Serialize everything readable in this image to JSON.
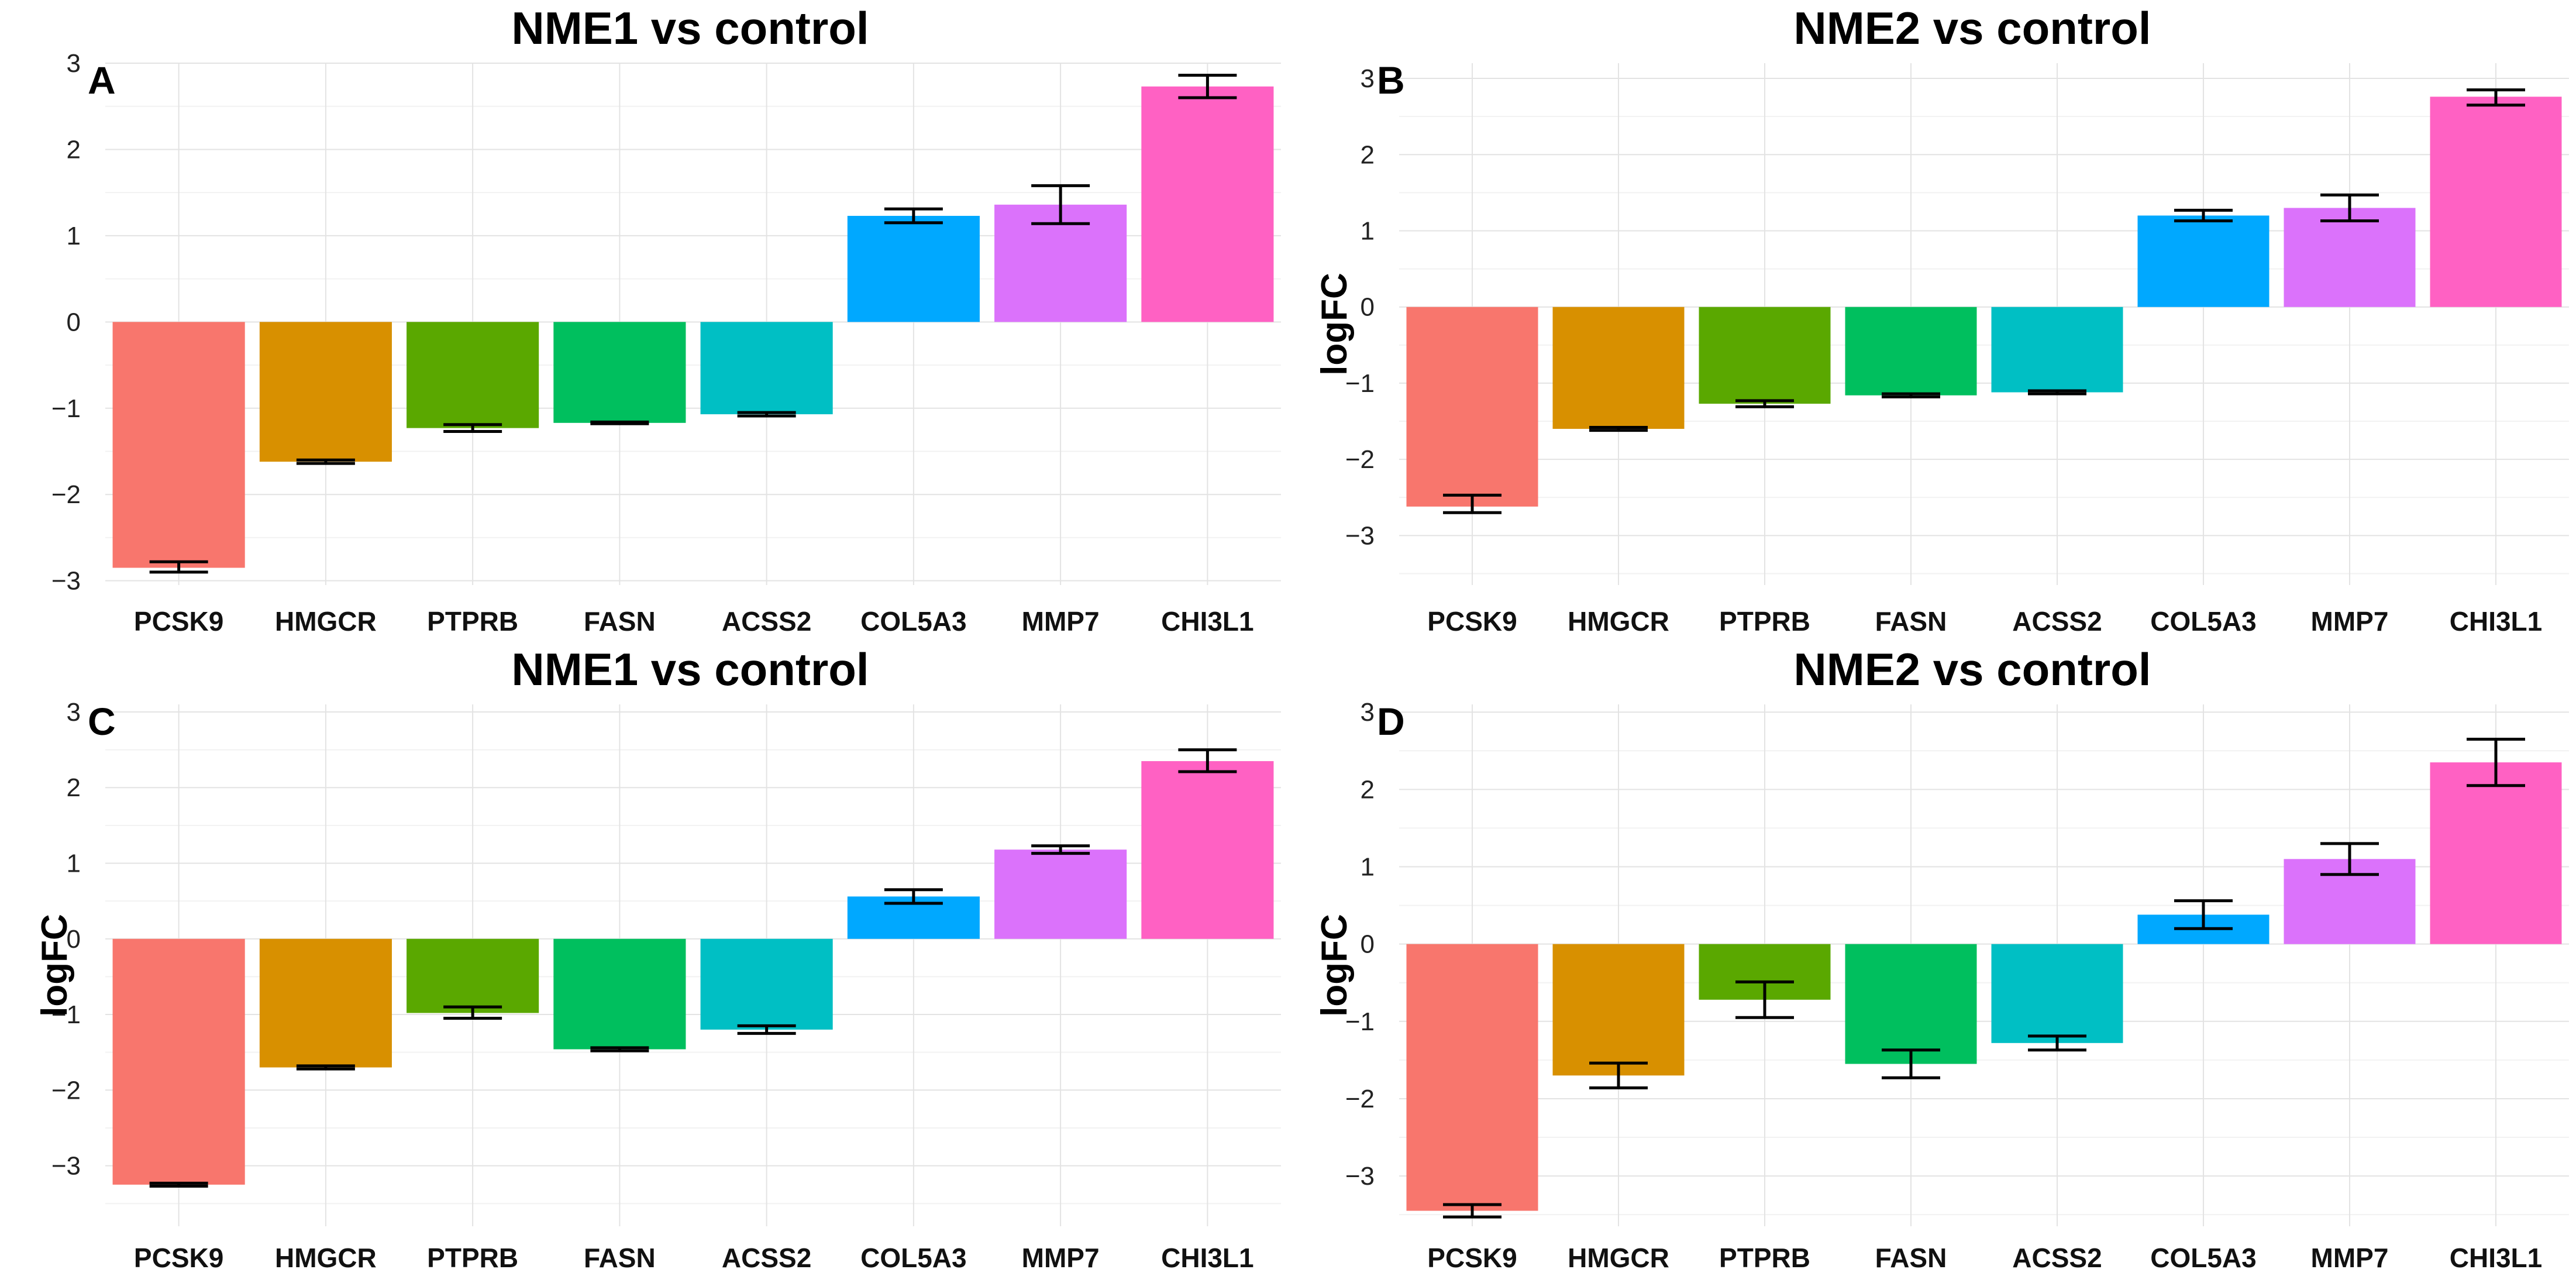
{
  "figure": {
    "panels_title": "logFC bar charts comparing NME1/NME2 vs control"
  },
  "colors": {
    "PCSK9": "#F8766D",
    "HMGCR": "#D89000",
    "PTPRB": "#5AA800",
    "FASN": "#00BF5E",
    "ACSS2": "#00BFC4",
    "COL5A3": "#00A8FF",
    "MMP7": "#DB72FB",
    "CHI3L1": "#FF61C3"
  },
  "chart_data": [
    {
      "panel": "A",
      "type": "bar",
      "title": "NME1 vs control",
      "xlabel": "",
      "ylabel": "",
      "ylim": [
        -3.05,
        3.0
      ],
      "yticks": [
        -3,
        -2,
        -1,
        0,
        1,
        2,
        3
      ],
      "categories": [
        "PCSK9",
        "HMGCR",
        "PTPRB",
        "FASN",
        "ACSS2",
        "COL5A3",
        "MMP7",
        "CHI3L1"
      ],
      "values": [
        -2.85,
        -1.62,
        -1.23,
        -1.17,
        -1.07,
        1.23,
        1.36,
        2.73
      ],
      "err_low": [
        -2.9,
        -1.64,
        -1.27,
        -1.18,
        -1.09,
        1.15,
        1.14,
        2.6
      ],
      "err_high": [
        -2.78,
        -1.6,
        -1.19,
        -1.16,
        -1.05,
        1.31,
        1.58,
        2.86
      ]
    },
    {
      "panel": "B",
      "type": "bar",
      "title": "NME2 vs control",
      "xlabel": "",
      "ylabel": "logFC",
      "ylim": [
        -3.65,
        3.2
      ],
      "yticks": [
        -3,
        -2,
        -1,
        0,
        1,
        2,
        3
      ],
      "categories": [
        "PCSK9",
        "HMGCR",
        "PTPRB",
        "FASN",
        "ACSS2",
        "COL5A3",
        "MMP7",
        "CHI3L1"
      ],
      "values": [
        -2.62,
        -1.6,
        -1.27,
        -1.16,
        -1.12,
        1.2,
        1.3,
        2.76
      ],
      "err_low": [
        -2.7,
        -1.62,
        -1.31,
        -1.18,
        -1.14,
        1.13,
        1.13,
        2.65
      ],
      "err_high": [
        -2.47,
        -1.58,
        -1.23,
        -1.14,
        -1.1,
        1.27,
        1.47,
        2.85
      ]
    },
    {
      "panel": "C",
      "type": "bar",
      "title": "NME1 vs control",
      "xlabel": "",
      "ylabel": "logFC",
      "ylim": [
        -3.8,
        3.1
      ],
      "yticks": [
        -3,
        -2,
        -1,
        0,
        1,
        2,
        3
      ],
      "categories": [
        "PCSK9",
        "HMGCR",
        "PTPRB",
        "FASN",
        "ACSS2",
        "COL5A3",
        "MMP7",
        "CHI3L1"
      ],
      "values": [
        -3.25,
        -1.7,
        -0.98,
        -1.46,
        -1.2,
        0.56,
        1.18,
        2.35
      ],
      "err_low": [
        -3.27,
        -1.72,
        -1.05,
        -1.48,
        -1.25,
        0.47,
        1.13,
        2.21
      ],
      "err_high": [
        -3.23,
        -1.68,
        -0.9,
        -1.44,
        -1.15,
        0.65,
        1.23,
        2.5
      ]
    },
    {
      "panel": "D",
      "type": "bar",
      "title": "NME2 vs control",
      "xlabel": "",
      "ylabel": "logFC",
      "ylim": [
        -3.65,
        3.1
      ],
      "yticks": [
        -3,
        -2,
        -1,
        0,
        1,
        2,
        3
      ],
      "categories": [
        "PCSK9",
        "HMGCR",
        "PTPRB",
        "FASN",
        "ACSS2",
        "COL5A3",
        "MMP7",
        "CHI3L1"
      ],
      "values": [
        -3.45,
        -1.7,
        -0.72,
        -1.55,
        -1.28,
        0.38,
        1.1,
        2.35
      ],
      "err_low": [
        -3.53,
        -1.86,
        -0.95,
        -1.73,
        -1.37,
        0.2,
        0.9,
        2.05
      ],
      "err_high": [
        -3.37,
        -1.54,
        -0.49,
        -1.37,
        -1.19,
        0.56,
        1.3,
        2.65
      ]
    }
  ]
}
